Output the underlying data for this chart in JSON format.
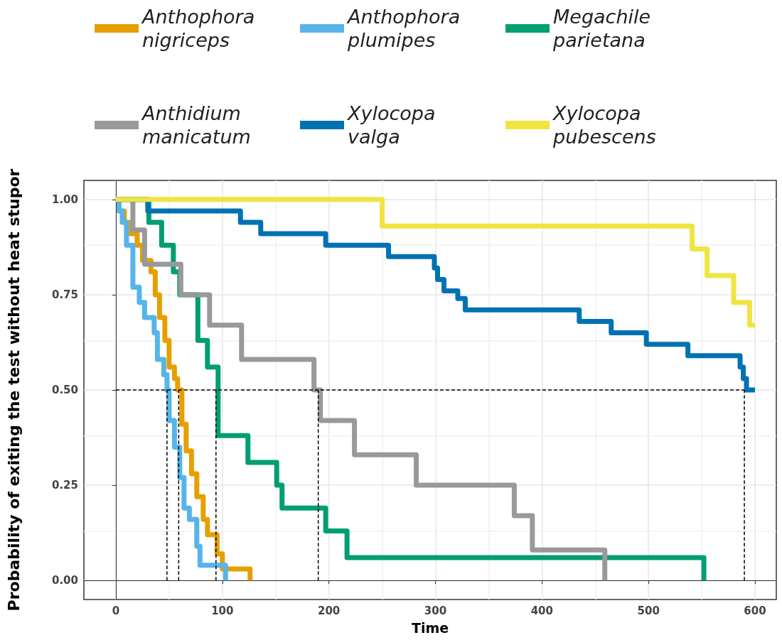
{
  "chart_data": {
    "type": "step",
    "xlabel": "Time",
    "ylabel": "Probability of exiting the test without heat stupor",
    "xlim": [
      -30,
      620
    ],
    "ylim": [
      -0.05,
      1.05
    ],
    "xticks": [
      0,
      100,
      200,
      300,
      400,
      500,
      600
    ],
    "yticks": [
      {
        "value": 0,
        "label": "0.00"
      },
      {
        "value": 0.25,
        "label": "0.25"
      },
      {
        "value": 0.5,
        "label": "0.50"
      },
      {
        "value": 0.75,
        "label": "0.75"
      },
      {
        "value": 1,
        "label": "1.00"
      }
    ],
    "grid": true,
    "legend": "top",
    "series": [
      {
        "name": "Anthophora nigriceps",
        "color": "#e69f00",
        "x": [
          0,
          3,
          8,
          14,
          20,
          25,
          33,
          37,
          41,
          46,
          50,
          55,
          58,
          62,
          66,
          71,
          76,
          82,
          86,
          95,
          100,
          126
        ],
        "values": [
          1,
          0.97,
          0.94,
          0.91,
          0.88,
          0.84,
          0.81,
          0.75,
          0.69,
          0.63,
          0.56,
          0.53,
          0.5,
          0.41,
          0.34,
          0.28,
          0.22,
          0.16,
          0.12,
          0.07,
          0.03,
          0
        ]
      },
      {
        "name": "Anthophora plumipes",
        "color": "#56b4e9",
        "x": [
          0,
          3,
          6,
          10,
          16,
          22,
          27,
          36,
          39,
          45,
          48,
          50,
          55,
          60,
          64,
          69,
          76,
          79,
          103
        ],
        "values": [
          1,
          0.97,
          0.94,
          0.88,
          0.77,
          0.73,
          0.69,
          0.65,
          0.58,
          0.54,
          0.5,
          0.42,
          0.35,
          0.27,
          0.19,
          0.16,
          0.09,
          0.04,
          0
        ]
      },
      {
        "name": "Megachile parietana",
        "color": "#009e73",
        "x": [
          0,
          31,
          43,
          54,
          60,
          77,
          86,
          96,
          124,
          151,
          156,
          197,
          217,
          552
        ],
        "values": [
          1,
          0.94,
          0.88,
          0.81,
          0.75,
          0.63,
          0.56,
          0.38,
          0.31,
          0.25,
          0.19,
          0.13,
          0.06,
          0
        ]
      },
      {
        "name": "Anthidium manicatum",
        "color": "#999999",
        "x": [
          0,
          16,
          27,
          61,
          88,
          118,
          186,
          192,
          224,
          282,
          374,
          391,
          459
        ],
        "values": [
          1,
          0.92,
          0.83,
          0.75,
          0.67,
          0.58,
          0.5,
          0.42,
          0.33,
          0.25,
          0.17,
          0.08,
          0
        ]
      },
      {
        "name": "Xylocopa valga",
        "color": "#0072b2",
        "x": [
          0,
          30,
          117,
          136,
          197,
          256,
          299,
          302,
          308,
          321,
          328,
          435,
          465,
          498,
          537,
          586,
          589,
          592,
          600
        ],
        "values": [
          1,
          0.97,
          0.94,
          0.91,
          0.88,
          0.85,
          0.82,
          0.79,
          0.76,
          0.74,
          0.71,
          0.68,
          0.65,
          0.62,
          0.59,
          0.56,
          0.53,
          0.5,
          0.5
        ]
      },
      {
        "name": "Xylocopa pubescens",
        "color": "#f0e442",
        "x": [
          0,
          250,
          541,
          555,
          580,
          595,
          600
        ],
        "values": [
          1,
          0.93,
          0.87,
          0.8,
          0.73,
          0.67,
          0.67
        ]
      },
      {
        "type": "line",
        "line_style": "dashed",
        "color": "#000000",
        "x": [
          0,
          590
        ],
        "values": [
          0.5,
          0.5
        ]
      },
      {
        "type": "line",
        "line_style": "dashed",
        "color": "#000000",
        "x": [
          48,
          48
        ],
        "values": [
          0,
          0.5
        ]
      },
      {
        "type": "line",
        "line_style": "dashed",
        "color": "#000000",
        "x": [
          59,
          59
        ],
        "values": [
          0,
          0.5
        ]
      },
      {
        "type": "line",
        "line_style": "dashed",
        "color": "#000000",
        "x": [
          94,
          94
        ],
        "values": [
          0,
          0.5
        ]
      },
      {
        "type": "line",
        "line_style": "dashed",
        "color": "#000000",
        "x": [
          190,
          190
        ],
        "values": [
          0,
          0.5
        ]
      },
      {
        "type": "line",
        "line_style": "dashed",
        "color": "#000000",
        "x": [
          590,
          590
        ],
        "values": [
          0,
          0.5
        ]
      }
    ]
  }
}
